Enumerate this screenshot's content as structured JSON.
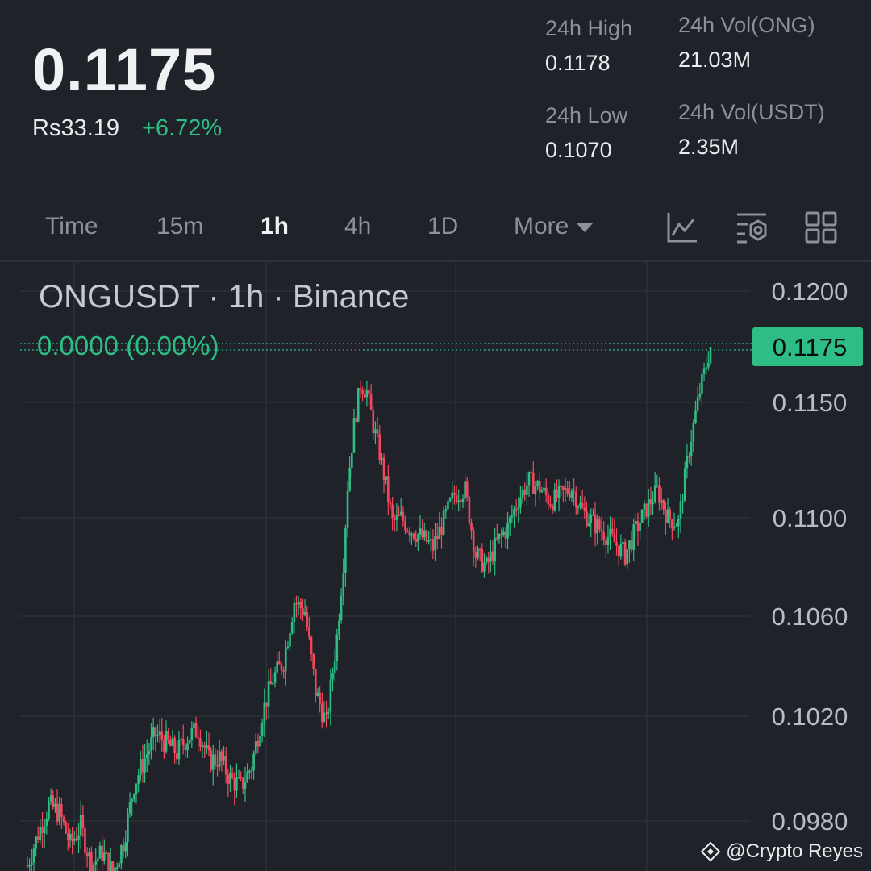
{
  "header": {
    "last_price": "0.1175",
    "fiat_price": "Rs33.19",
    "change_pct": "+6.72%"
  },
  "stats": {
    "high_label": "24h High",
    "high_value": "0.1178",
    "low_label": "24h Low",
    "low_value": "0.1070",
    "vol_base_label": "24h Vol(ONG)",
    "vol_base_value": "21.03M",
    "vol_quote_label": "24h Vol(USDT)",
    "vol_quote_value": "2.35M"
  },
  "tabs": [
    {
      "label": "Time",
      "active": false
    },
    {
      "label": "15m",
      "active": false
    },
    {
      "label": "1h",
      "active": true
    },
    {
      "label": "4h",
      "active": false
    },
    {
      "label": "1D",
      "active": false
    },
    {
      "label": "More",
      "active": false
    }
  ],
  "toolbar_icons": [
    "indicator-line-chart-icon",
    "settings-filter-icon",
    "grid-layout-icon"
  ],
  "colors": {
    "background": "#1f2329",
    "up": "#2ebd85",
    "down": "#f6465d",
    "text_muted": "#8b919b",
    "grid": "#2b3139"
  },
  "chart_data": {
    "type": "candlestick",
    "symbol_label": "ONGUSDT · 1h · Binance",
    "change_label": "0.0000 (0.00%)",
    "last_price_tag": "0.1175",
    "y_ticks": [
      "0.1200",
      "0.1150",
      "0.1100",
      "0.1060",
      "0.1020",
      "0.0980"
    ],
    "y_tick_values": [
      0.12,
      0.115,
      0.11,
      0.106,
      0.102,
      0.098
    ],
    "last_price": 0.1175,
    "price_points": [
      [
        0,
        0.0963
      ],
      [
        5,
        0.0975
      ],
      [
        10,
        0.0986
      ],
      [
        15,
        0.0983
      ],
      [
        20,
        0.0971
      ],
      [
        25,
        0.0978
      ],
      [
        30,
        0.0963
      ],
      [
        35,
        0.0968
      ],
      [
        40,
        0.096
      ],
      [
        45,
        0.0972
      ],
      [
        50,
        0.0994
      ],
      [
        55,
        0.1004
      ],
      [
        60,
        0.1013
      ],
      [
        65,
        0.101
      ],
      [
        70,
        0.1006
      ],
      [
        75,
        0.1012
      ],
      [
        80,
        0.1015
      ],
      [
        85,
        0.1003
      ],
      [
        90,
        0.1004
      ],
      [
        95,
        0.0996
      ],
      [
        100,
        0.0993
      ],
      [
        105,
        0.1001
      ],
      [
        110,
        0.1021
      ],
      [
        115,
        0.1035
      ],
      [
        120,
        0.1042
      ],
      [
        125,
        0.1066
      ],
      [
        130,
        0.1062
      ],
      [
        135,
        0.103
      ],
      [
        140,
        0.1017
      ],
      [
        145,
        0.1052
      ],
      [
        148,
        0.1082
      ],
      [
        150,
        0.1114
      ],
      [
        153,
        0.114
      ],
      [
        156,
        0.1158
      ],
      [
        159,
        0.1155
      ],
      [
        162,
        0.114
      ],
      [
        165,
        0.1128
      ],
      [
        168,
        0.1114
      ],
      [
        171,
        0.1098
      ],
      [
        175,
        0.11
      ],
      [
        180,
        0.1095
      ],
      [
        185,
        0.1092
      ],
      [
        190,
        0.1088
      ],
      [
        195,
        0.1099
      ],
      [
        200,
        0.111
      ],
      [
        205,
        0.1112
      ],
      [
        210,
        0.1085
      ],
      [
        215,
        0.108
      ],
      [
        220,
        0.109
      ],
      [
        225,
        0.1096
      ],
      [
        230,
        0.1108
      ],
      [
        235,
        0.1116
      ],
      [
        240,
        0.1113
      ],
      [
        245,
        0.1107
      ],
      [
        250,
        0.111
      ],
      [
        255,
        0.1113
      ],
      [
        260,
        0.1103
      ],
      [
        265,
        0.1098
      ],
      [
        270,
        0.1094
      ],
      [
        275,
        0.109
      ],
      [
        280,
        0.1085
      ],
      [
        285,
        0.1095
      ],
      [
        290,
        0.1104
      ],
      [
        295,
        0.1112
      ],
      [
        300,
        0.11
      ],
      [
        305,
        0.1098
      ],
      [
        310,
        0.113
      ],
      [
        315,
        0.1155
      ],
      [
        320,
        0.1175
      ]
    ]
  },
  "watermark": "@Crypto Reyes"
}
